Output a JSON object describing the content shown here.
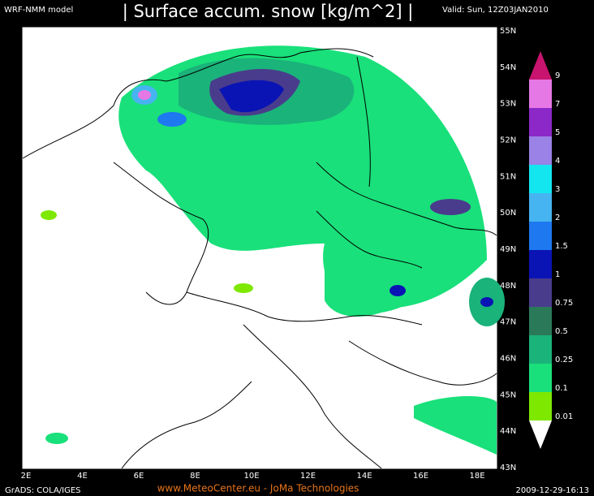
{
  "header": {
    "model": "WRF-NMM model",
    "title": "| Surface accum. snow [kg/m^2] |",
    "valid": "Valid: Sun, 12Z03JAN2010"
  },
  "map": {
    "latitude_labels": [
      "55N",
      "54N",
      "53N",
      "52N",
      "51N",
      "50N",
      "49N",
      "48N",
      "47N",
      "46N",
      "45N",
      "44N",
      "43N"
    ],
    "longitude_labels": [
      "2E",
      "4E",
      "6E",
      "8E",
      "10E",
      "12E",
      "14E",
      "16E",
      "18E"
    ]
  },
  "legend": {
    "below_color": "#ffffff",
    "levels": [
      {
        "label": "0.01",
        "color": "#7ee800"
      },
      {
        "label": "0.1",
        "color": "#19e07a"
      },
      {
        "label": "0.25",
        "color": "#1ab37a"
      },
      {
        "label": "0.5",
        "color": "#2a7a5a"
      },
      {
        "label": "0.75",
        "color": "#4a3c8c"
      },
      {
        "label": "1",
        "color": "#0a14b4"
      },
      {
        "label": "1.5",
        "color": "#1e78f0"
      },
      {
        "label": "2",
        "color": "#46b4f0"
      },
      {
        "label": "3",
        "color": "#14e6f0"
      },
      {
        "label": "4",
        "color": "#9a82e6"
      },
      {
        "label": "5",
        "color": "#8c28c8"
      },
      {
        "label": "7",
        "color": "#e678e6"
      },
      {
        "label": "9",
        "color": "#c8146e"
      }
    ]
  },
  "footer": {
    "left": "GrADS: COLA/IGES",
    "center": "www.MeteoCenter.eu  -  JoMa Technologies",
    "right": "2009-12-29-16:13"
  }
}
